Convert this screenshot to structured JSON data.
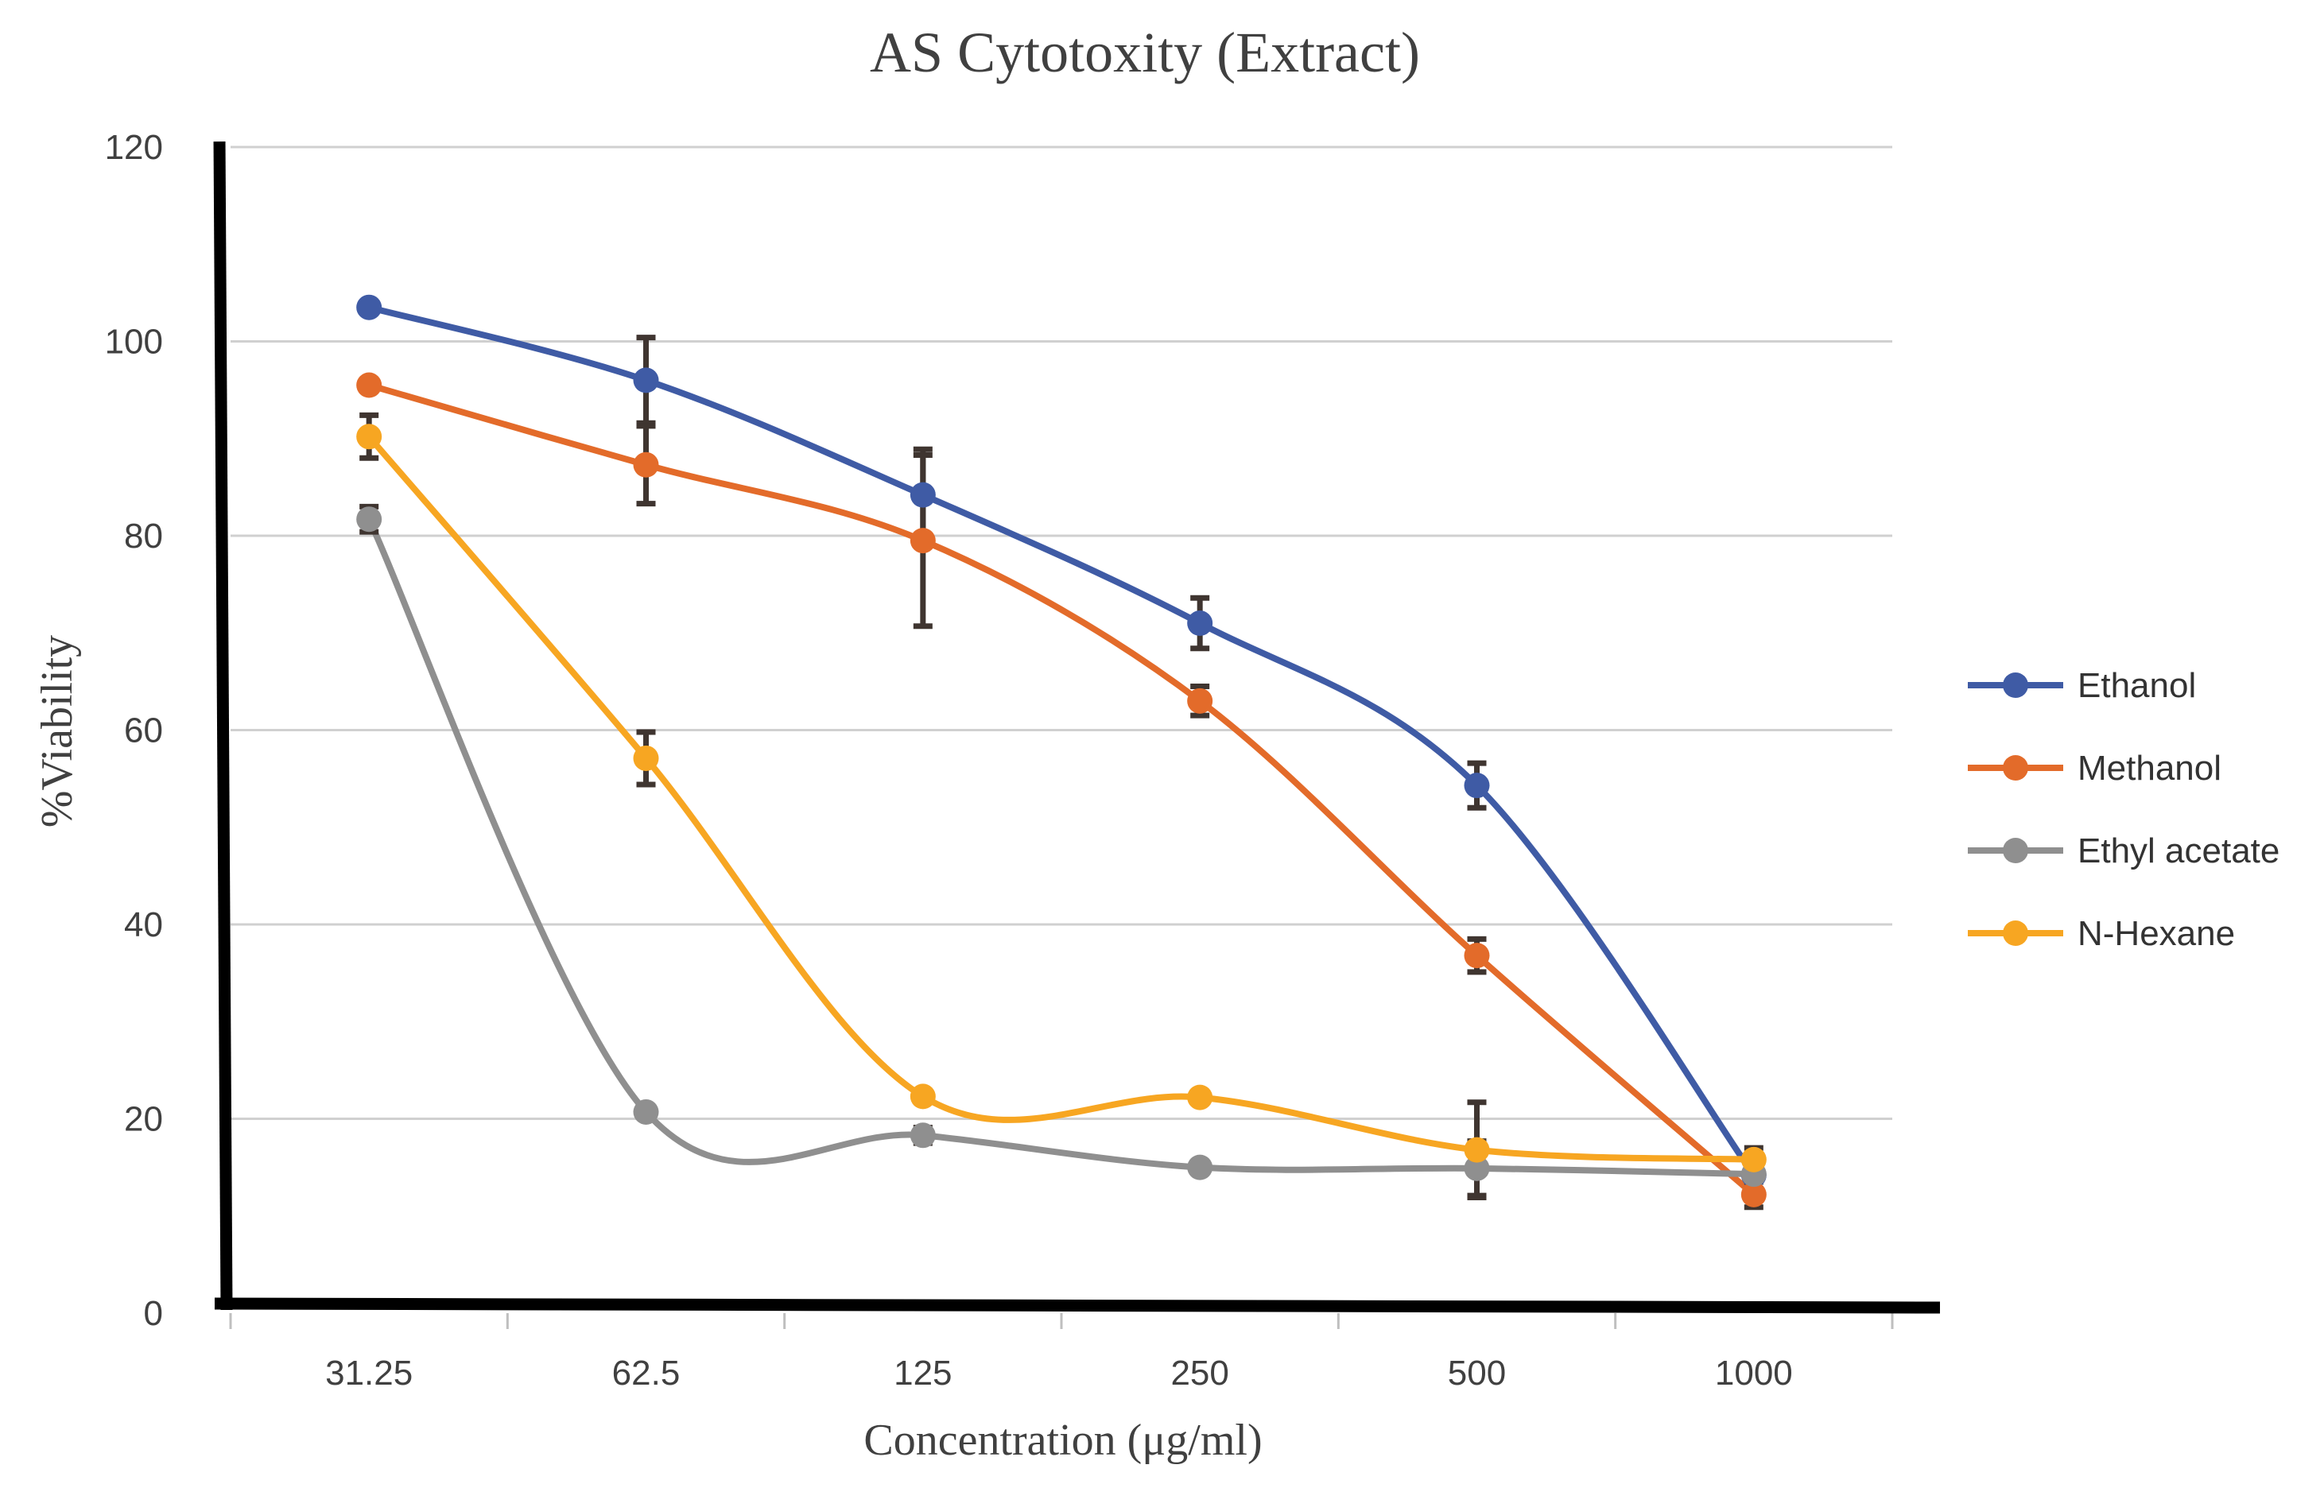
{
  "chart_data": {
    "type": "line",
    "title": "AS Cytotoxity (Extract)",
    "xlabel": "Concentration (μg/ml)",
    "ylabel": "%Viability",
    "categories": [
      "31.25",
      "62.5",
      "125",
      "250",
      "500",
      "1000"
    ],
    "ylim": [
      0,
      120
    ],
    "yticks": [
      0,
      20,
      40,
      60,
      80,
      100,
      120
    ],
    "grid": "horizontal",
    "legend_position": "right",
    "series": [
      {
        "name": "Ethanol",
        "color": "#3f5ba5",
        "values": [
          103.5,
          96,
          84.2,
          71,
          54.3,
          14.2
        ],
        "errors": [
          0,
          4.4,
          4.7,
          2.6,
          2.3,
          1.8
        ]
      },
      {
        "name": "Methanol",
        "color": "#e36b2a",
        "values": [
          95.5,
          87.3,
          79.5,
          63,
          36.8,
          12.2
        ],
        "errors": [
          0,
          4,
          8.8,
          1.5,
          1.7,
          1.3
        ]
      },
      {
        "name": "Ethyl acetate",
        "color": "#8f8f8f",
        "values": [
          81.7,
          20.7,
          18.3,
          15,
          14.9,
          14.3
        ],
        "errors": [
          1.3,
          0,
          0.8,
          0,
          2.8,
          1.5
        ]
      },
      {
        "name": "N-Hexane",
        "color": "#f7a622",
        "values": [
          90.2,
          57.1,
          22.3,
          22.2,
          16.8,
          15.8
        ],
        "errors": [
          2.2,
          2.7,
          0,
          0,
          4.9,
          1.2
        ]
      }
    ]
  }
}
